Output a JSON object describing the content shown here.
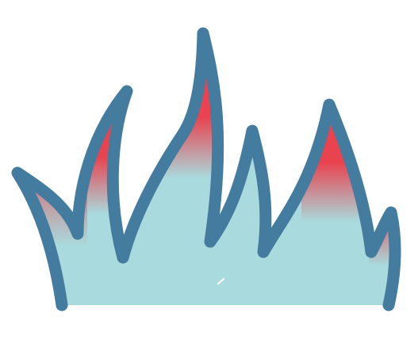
{
  "illustration": {
    "icon": "flame-icon",
    "colors": {
      "background": "#ffffff",
      "outline": "#447ca0",
      "fill": "#a9dadd",
      "hot": "#e8434f"
    }
  }
}
